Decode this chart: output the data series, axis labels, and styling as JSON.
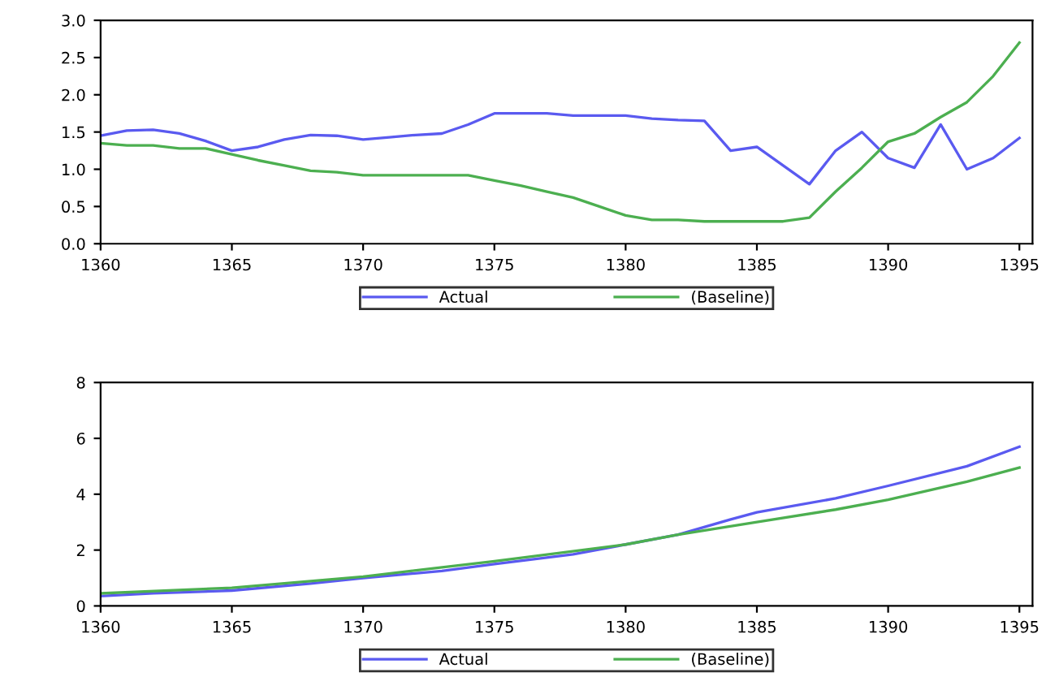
{
  "chart_data": [
    {
      "type": "line",
      "x": [
        1360,
        1361,
        1362,
        1363,
        1364,
        1365,
        1366,
        1367,
        1368,
        1369,
        1370,
        1371,
        1372,
        1373,
        1374,
        1375,
        1376,
        1377,
        1378,
        1379,
        1380,
        1381,
        1382,
        1383,
        1384,
        1385,
        1386,
        1387,
        1388,
        1389,
        1390,
        1391,
        1392,
        1393,
        1394,
        1395
      ],
      "series": [
        {
          "name": "Actual",
          "color": "#5a5af0",
          "values": [
            1.45,
            1.52,
            1.53,
            1.48,
            1.38,
            1.25,
            1.3,
            1.4,
            1.46,
            1.45,
            1.4,
            1.43,
            1.46,
            1.48,
            1.6,
            1.75,
            1.75,
            1.75,
            1.72,
            1.72,
            1.72,
            1.68,
            1.66,
            1.65,
            1.25,
            1.3,
            1.05,
            0.8,
            1.25,
            1.5,
            1.15,
            1.02,
            1.6,
            1.0,
            1.15,
            1.42
          ]
        },
        {
          "name": "(Baseline)",
          "color": "#4caf50",
          "values": [
            1.35,
            1.32,
            1.32,
            1.28,
            1.28,
            1.2,
            1.12,
            1.05,
            0.98,
            0.96,
            0.92,
            0.92,
            0.92,
            0.92,
            0.92,
            0.85,
            0.78,
            0.7,
            0.62,
            0.5,
            0.38,
            0.32,
            0.32,
            0.3,
            0.3,
            0.3,
            0.3,
            0.35,
            0.7,
            1.02,
            1.37,
            1.48,
            1.7,
            1.9,
            2.25,
            2.7
          ]
        }
      ],
      "xlim": [
        1360,
        1395.5
      ],
      "xticks": [
        1360,
        1365,
        1370,
        1375,
        1380,
        1385,
        1390,
        1395
      ],
      "ylim": [
        0,
        3
      ],
      "yticks": [
        {
          "value": 0,
          "label": "0.0"
        },
        {
          "value": 0.5,
          "label": "0.5"
        },
        {
          "value": 1,
          "label": "1.0"
        },
        {
          "value": 1.5,
          "label": "1.5"
        },
        {
          "value": 2,
          "label": "2.0"
        },
        {
          "value": 2.5,
          "label": "2.5"
        },
        {
          "value": 3,
          "label": "3.0"
        }
      ],
      "legend": "bottom",
      "grid": false
    },
    {
      "type": "line",
      "x": [
        1360,
        1362,
        1365,
        1368,
        1370,
        1373,
        1375,
        1378,
        1380,
        1382,
        1384,
        1385,
        1388,
        1390,
        1393,
        1395
      ],
      "series": [
        {
          "name": "Actual",
          "color": "#5a5af0",
          "values": [
            0.35,
            0.45,
            0.55,
            0.8,
            1.0,
            1.25,
            1.5,
            1.85,
            2.2,
            2.55,
            3.1,
            3.35,
            3.85,
            4.3,
            5.0,
            5.7
          ]
        },
        {
          "name": "(Baseline)",
          "color": "#4caf50",
          "x": [
            1360,
            1365,
            1370,
            1375,
            1380,
            1382,
            1385,
            1388,
            1390,
            1393,
            1395
          ],
          "values": [
            0.45,
            0.65,
            1.05,
            1.6,
            2.2,
            2.55,
            3.0,
            3.45,
            3.8,
            4.45,
            4.95
          ]
        }
      ],
      "xlim": [
        1360,
        1395.5
      ],
      "xticks": [
        1360,
        1365,
        1370,
        1375,
        1380,
        1385,
        1390,
        1395
      ],
      "ylim": [
        0,
        8
      ],
      "yticks": [
        0,
        2,
        4,
        6,
        8
      ],
      "legend": "bottom",
      "grid": false
    }
  ]
}
